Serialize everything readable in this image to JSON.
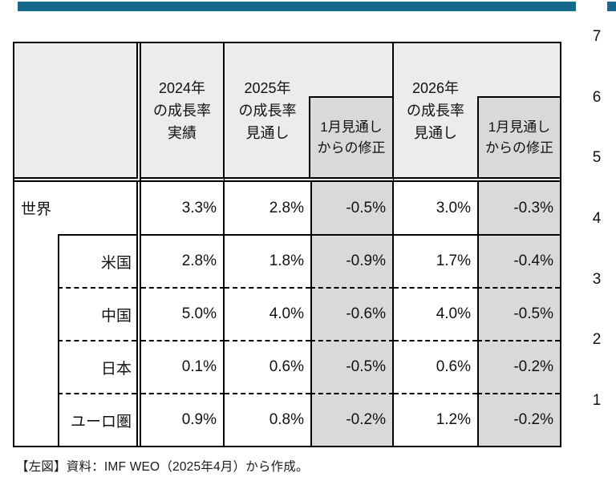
{
  "accent_color": "#17698f",
  "chart_data": {
    "type": "table",
    "columns": [
      "2024年の成長率実績",
      "2025年の成長率見通し",
      "1月見通しからの修正",
      "2026年の成長率見通し",
      "1月見通しからの修正"
    ],
    "header": {
      "col_2024": "2024年\nの成長率\n実績",
      "col_2025": "2025年\nの成長率\n見通し",
      "col_rev": "1月見通し\nからの修正",
      "col_2026": "2026年\nの成長率\n見通し",
      "col_rev2": "1月見通し\nからの修正"
    },
    "rows": [
      {
        "label": "世界",
        "values": [
          "3.3%",
          "2.8%",
          "-0.5%",
          "3.0%",
          "-0.3%"
        ]
      },
      {
        "label": "米国",
        "values": [
          "2.8%",
          "1.8%",
          "-0.9%",
          "1.7%",
          "-0.4%"
        ]
      },
      {
        "label": "中国",
        "values": [
          "5.0%",
          "4.0%",
          "-0.6%",
          "4.0%",
          "-0.5%"
        ]
      },
      {
        "label": "日本",
        "values": [
          "0.1%",
          "0.6%",
          "-0.5%",
          "0.6%",
          "-0.2%"
        ]
      },
      {
        "label": "ユーロ圏",
        "values": [
          "0.9%",
          "0.8%",
          "-0.2%",
          "1.2%",
          "-0.2%"
        ]
      }
    ],
    "caption": "【左図】資料：IMF WEO（2025年4月）から作成。",
    "right_axis_ticks": [
      "7",
      "6",
      "5",
      "4",
      "3",
      "2",
      "1"
    ],
    "layout_hints": {
      "revision_columns_shaded": true,
      "header_bg": "#ececec",
      "shaded_bg": "#d9d9d9"
    }
  }
}
